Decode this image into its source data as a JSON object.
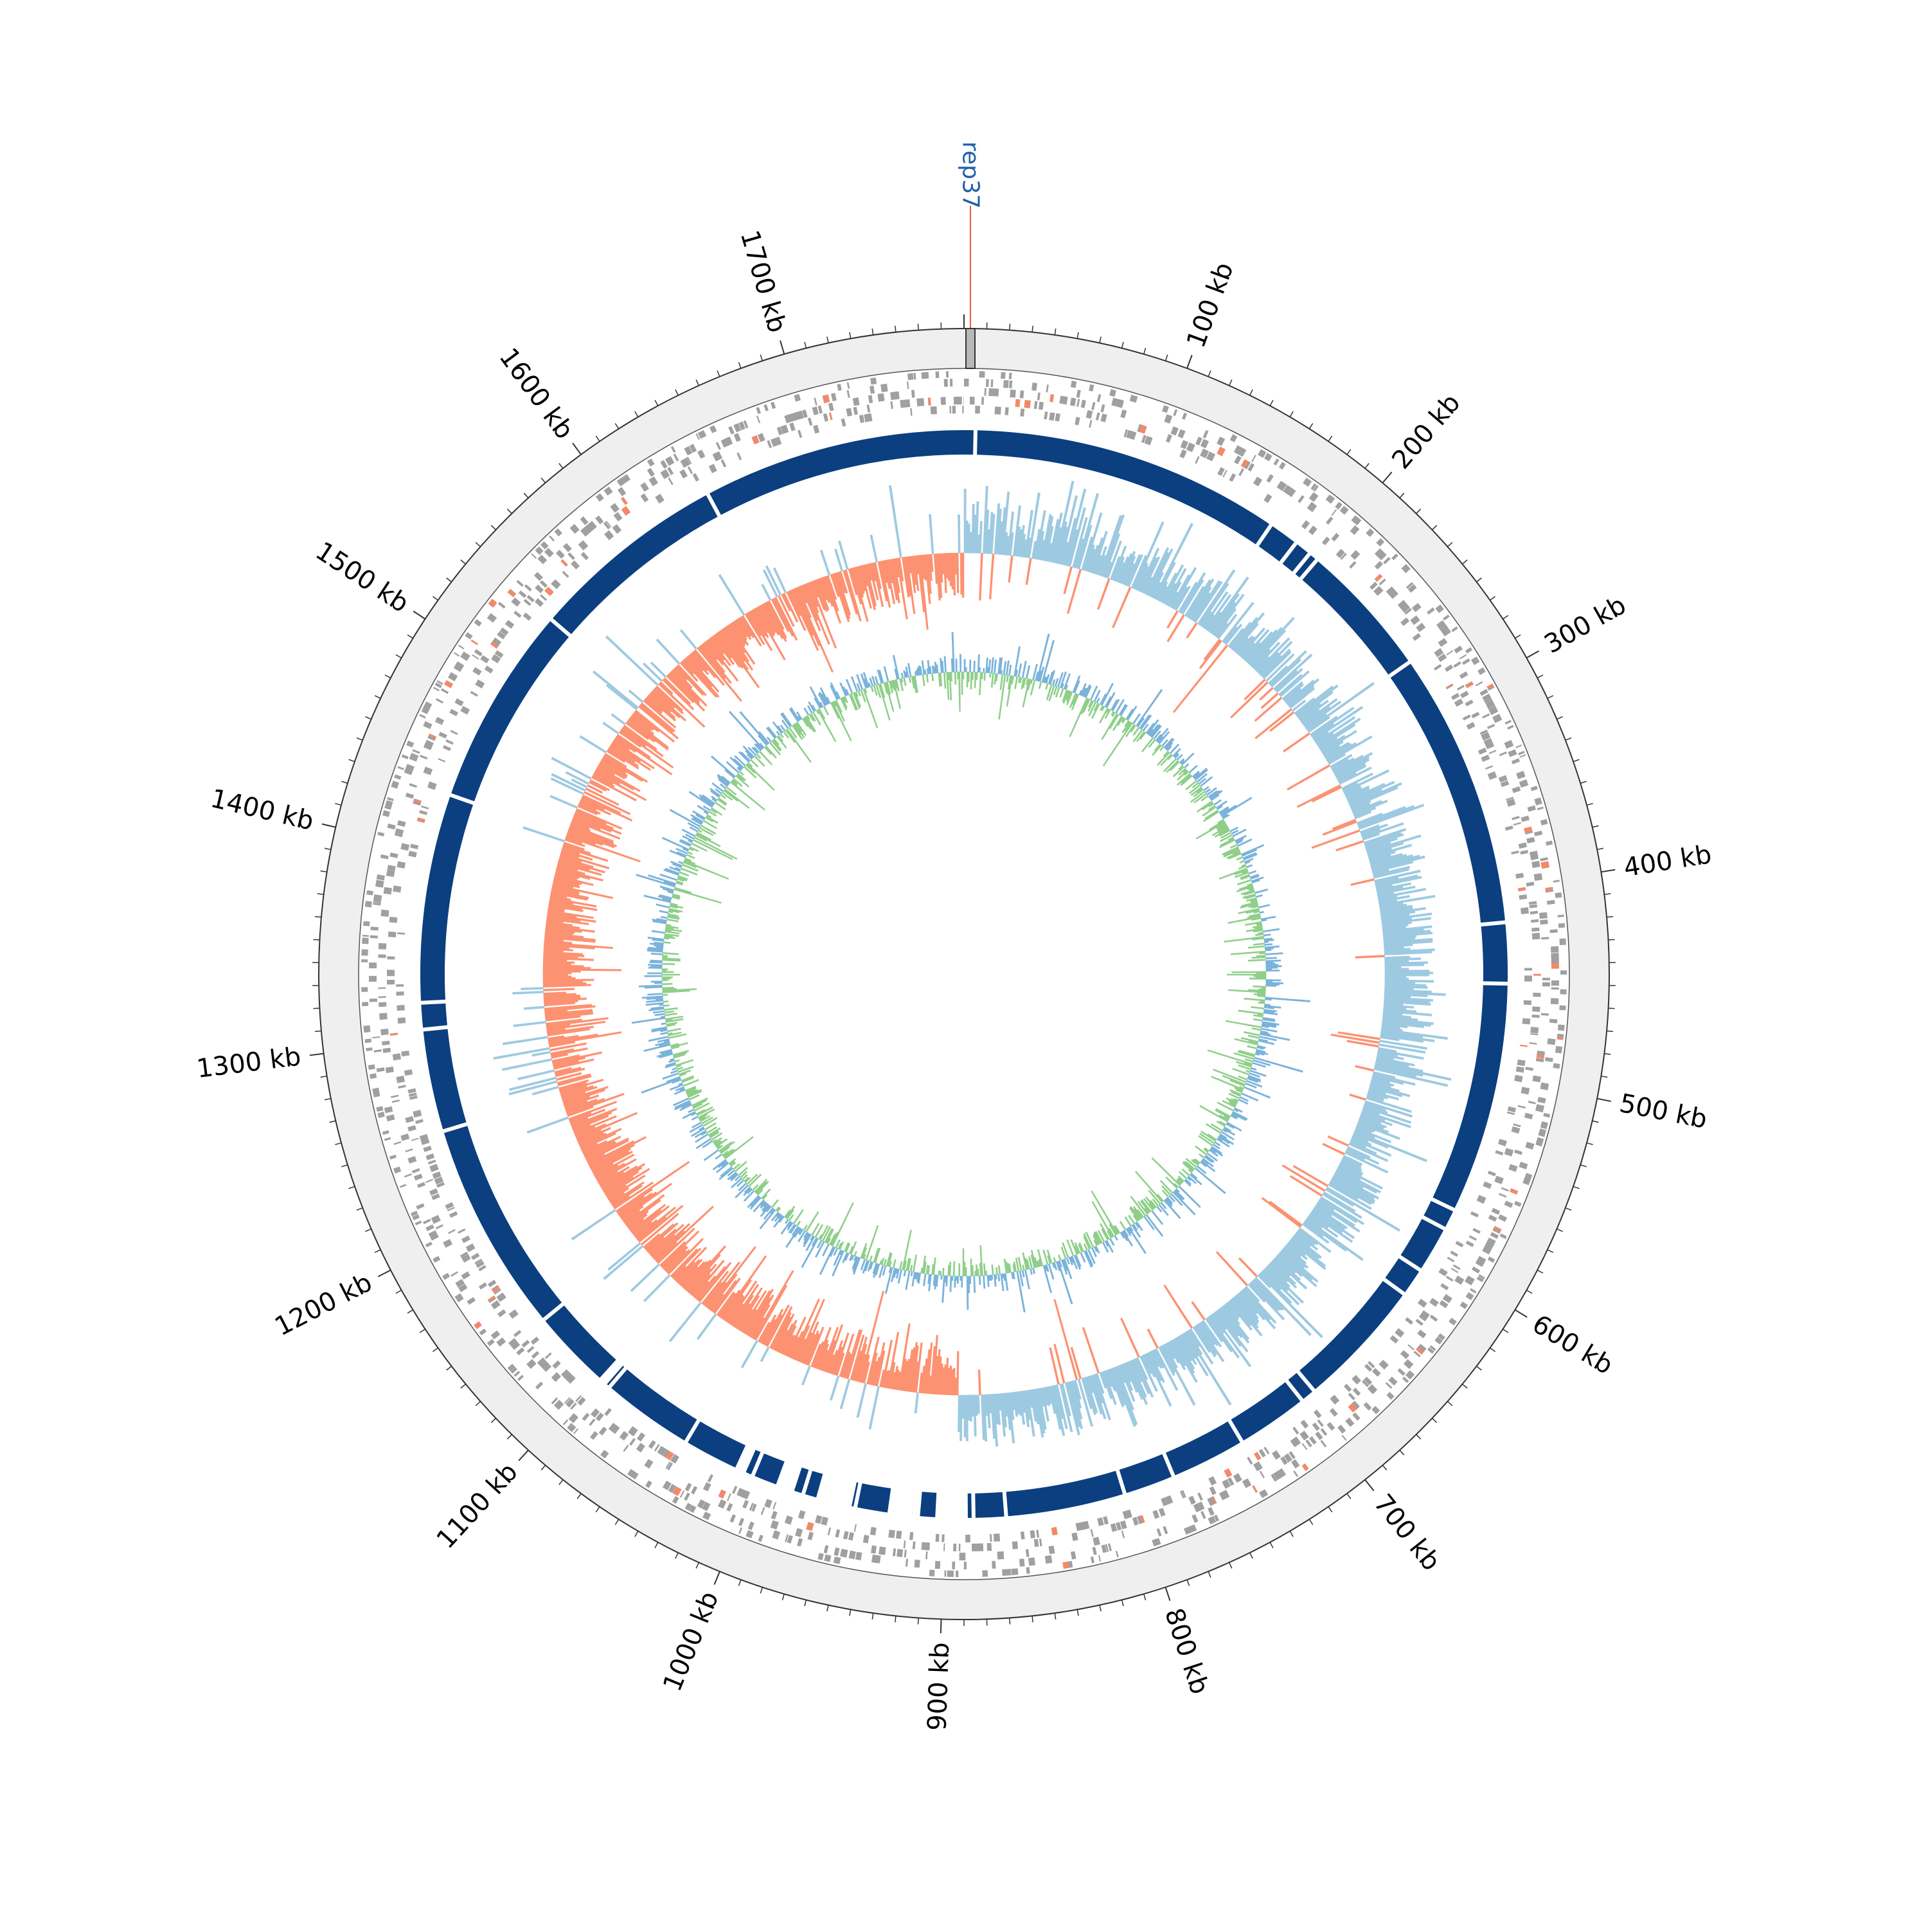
{
  "genome": {
    "length_kb": 1780,
    "tick_labels": [
      "100 kb",
      "200 kb",
      "300 kb",
      "400 kb",
      "500 kb",
      "600 kb",
      "700 kb",
      "800 kb",
      "900 kb",
      "1000 kb",
      "1100 kb",
      "1200 kb",
      "1300 kb",
      "1400 kb",
      "1500 kb",
      "1600 kb",
      "1700 kb"
    ],
    "tick_positions_kb": [
      100,
      200,
      300,
      400,
      500,
      600,
      700,
      800,
      900,
      1000,
      1100,
      1200,
      1300,
      1400,
      1500,
      1600,
      1700
    ],
    "minor_tick_step_kb": 10
  },
  "marker": {
    "label": "rep37",
    "position_kb": 0,
    "label_color": "#1f5fa8",
    "line_color": "#e8603c"
  },
  "tracks": {
    "backbone_color": "#efefef",
    "feature_color": "#a0a0a0",
    "feature_highlight_color": "#f08a6a",
    "contig_color": "#0b3f80",
    "contig_breaks_kb": [
      6,
      170,
      186,
      195,
      200,
      272,
      418,
      450,
      572,
      583,
      608,
      623,
      692,
      700,
      738,
      778,
      805,
      868,
      885,
      895,
      902,
      914,
      916,
      925,
      947,
      975,
      1003,
      1042,
      1091,
      1140,
      1252,
      1306,
      1320,
      1430,
      1536,
      1641
    ],
    "contig_gaps_kb": [
      [
        888,
        905
      ],
      [
        917,
        930
      ],
      [
        949,
        968
      ],
      [
        980,
        990
      ],
      [
        1007,
        1013
      ],
      [
        1093,
        1098
      ]
    ],
    "gc_skew_positive_color": "#9ecae1",
    "gc_skew_negative_color": "#fc9272",
    "gc_skew_origin_kb": 0,
    "gc_skew_terminus_kb": 895,
    "gc_content_above_color": "#8fcf8a",
    "gc_content_below_color": "#7bb3da"
  }
}
